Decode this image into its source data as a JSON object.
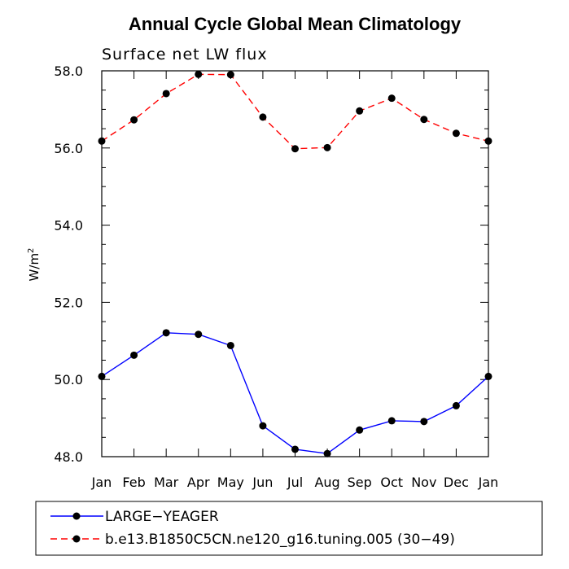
{
  "chart_data": {
    "type": "line",
    "title": "Annual Cycle Global Mean Climatology",
    "subtitle": "Surface net LW flux",
    "ylabel_main": "W/m",
    "ylabel_sup": "2",
    "xlabel": "",
    "categories": [
      "Jan",
      "Feb",
      "Mar",
      "Apr",
      "May",
      "Jun",
      "Jul",
      "Aug",
      "Sep",
      "Oct",
      "Nov",
      "Dec",
      "Jan"
    ],
    "ylim": [
      48.0,
      58.0
    ],
    "yticks": [
      "58.0",
      "56.0",
      "54.0",
      "52.0",
      "50.0",
      "48.0"
    ],
    "grid": false,
    "legend_position": "bottom",
    "series": [
      {
        "name": "LARGE−YEAGER",
        "color": "#0000ff",
        "dashed": false,
        "values": [
          50.08,
          50.63,
          51.21,
          51.17,
          50.88,
          48.8,
          48.19,
          48.08,
          48.69,
          48.93,
          48.91,
          49.32,
          50.08
        ]
      },
      {
        "name": "b.e13.B1850C5CN.ne120_g16.tuning.005 (30−49)",
        "color": "#ff0000",
        "dashed": true,
        "values": [
          56.18,
          56.73,
          57.41,
          57.91,
          57.9,
          56.8,
          55.98,
          56.01,
          56.96,
          57.29,
          56.74,
          56.38,
          56.18
        ]
      }
    ]
  }
}
